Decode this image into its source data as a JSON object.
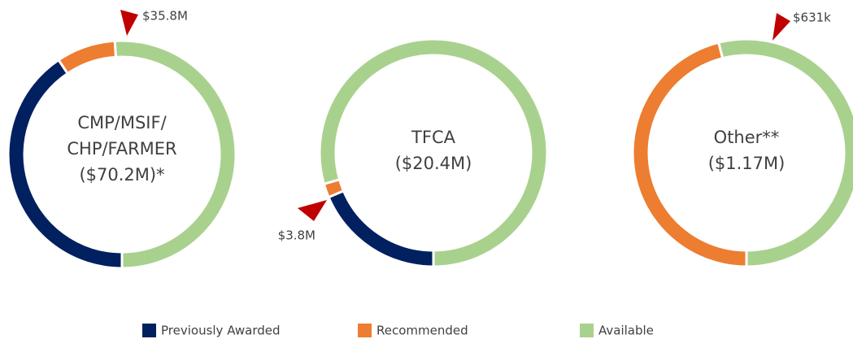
{
  "chart_data": [
    {
      "type": "donut",
      "title_lines": [
        "CMP/MSIF/",
        "CHP/FARMER",
        "($70.2M)*"
      ],
      "annotation": "$35.8M",
      "series": [
        {
          "name": "Previously Awarded",
          "color": "#002060",
          "values": [
            28.5
          ]
        },
        {
          "name": "Recommended",
          "color": "#ed7d31",
          "values": [
            5.9
          ]
        },
        {
          "name": "Available",
          "color": "#a9d18e",
          "values": [
            35.8
          ]
        }
      ]
    },
    {
      "type": "donut",
      "title_lines": [
        "TFCA",
        "($20.4M)"
      ],
      "annotation": "$3.8M",
      "series": [
        {
          "name": "Previously Awarded",
          "color": "#002060",
          "values": [
            3.8
          ]
        },
        {
          "name": "Recommended",
          "color": "#ed7d31",
          "values": [
            0.4
          ]
        },
        {
          "name": "Available",
          "color": "#a9d18e",
          "values": [
            16.2
          ]
        }
      ]
    },
    {
      "type": "donut",
      "title_lines": [
        "Other**",
        "($1.17M)"
      ],
      "annotation": "$631k",
      "series": [
        {
          "name": "Previously Awarded",
          "color": "#002060",
          "values": [
            0
          ]
        },
        {
          "name": "Recommended",
          "color": "#ed7d31",
          "values": [
            0.539
          ]
        },
        {
          "name": "Available",
          "color": "#a9d18e",
          "values": [
            0.631
          ]
        }
      ]
    }
  ]
}
